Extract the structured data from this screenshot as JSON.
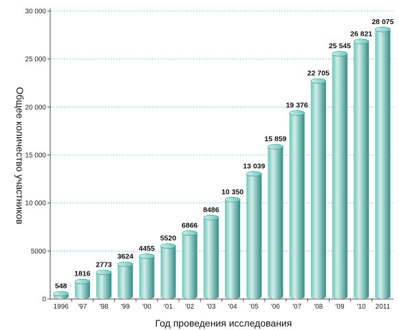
{
  "chart_data": {
    "type": "bar",
    "categories": [
      "1996",
      "'97",
      "'98",
      "'99",
      "'00",
      "'01",
      "'02",
      "'03",
      "'04",
      "'05",
      "'06",
      "'07",
      "'08",
      "'09",
      "'10",
      "2011"
    ],
    "values": [
      548,
      1816,
      2773,
      3624,
      4455,
      5520,
      6866,
      8486,
      10350,
      13039,
      15859,
      19376,
      22705,
      25545,
      26821,
      28075
    ],
    "value_labels": [
      "548",
      "1816",
      "2773",
      "3624",
      "4455",
      "5520",
      "6866",
      "8486",
      "10 350",
      "13 039",
      "15 859",
      "19 376",
      "22 705",
      "25 545",
      "26 821",
      "28 075"
    ],
    "title": "",
    "xlabel": "Год проведения исследования",
    "ylabel": "Общее количество участников",
    "ylim": [
      0,
      30000
    ],
    "yticks": [
      0,
      5000,
      10000,
      15000,
      20000,
      25000,
      30000
    ],
    "ytick_labels": [
      "0",
      "5000",
      "10 000",
      "15 000",
      "20 000",
      "25 000",
      "30 000"
    ],
    "grid": true,
    "bar_style": "3d-cylinder",
    "colors": {
      "bar_light": "#d2eeea",
      "bar_mid": "#6cc7bb",
      "bar_dark": "#2f8e84",
      "grid": "#6cb8d8"
    }
  }
}
